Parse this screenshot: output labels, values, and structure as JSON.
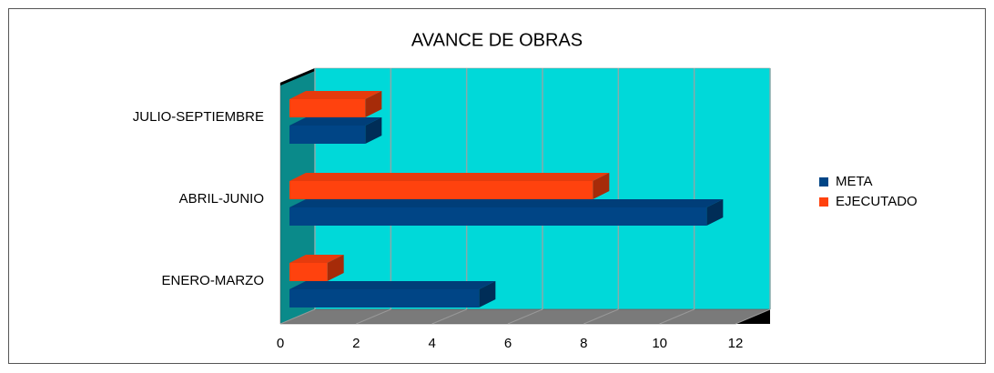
{
  "chart_data": {
    "type": "bar3d",
    "title": "AVANCE DE OBRAS",
    "categories": [
      "ENERO-MARZO",
      "ABRIL-JUNIO",
      "JULIO-SEPTIEMBRE"
    ],
    "series": [
      {
        "name": "META",
        "color": "#004586",
        "values": [
          5,
          11,
          2
        ]
      },
      {
        "name": "EJECUTADO",
        "color": "#ff420e",
        "values": [
          1,
          8,
          2
        ]
      }
    ],
    "xlim": [
      0,
      12
    ],
    "xticks": [
      0,
      2,
      4,
      6,
      8,
      10,
      12
    ],
    "grid": true,
    "legend": "right"
  }
}
